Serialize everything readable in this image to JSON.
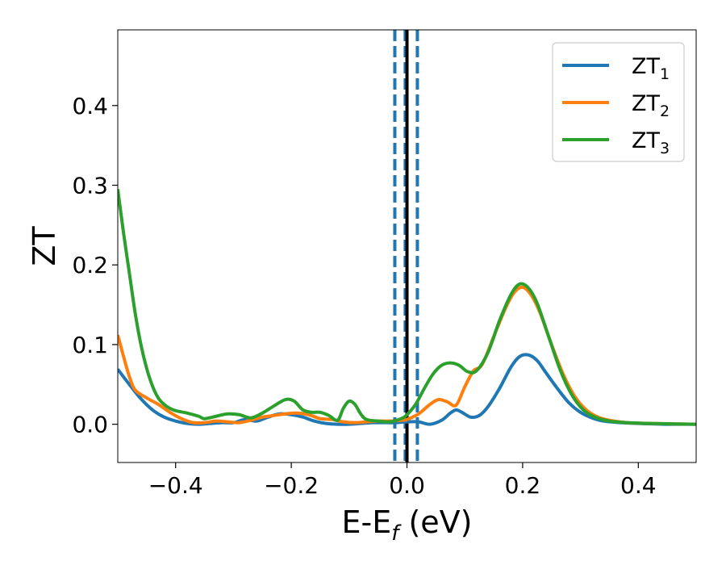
{
  "chart_data": {
    "type": "line",
    "xlabel": "E-E",
    "xlabel_sub": "f",
    "xlabel_unit": " (eV)",
    "ylabel": "ZT",
    "xlim": [
      -0.5,
      0.5
    ],
    "ylim": [
      -0.048,
      0.495
    ],
    "x_ticks": [
      -0.4,
      -0.2,
      0.0,
      0.2,
      0.4
    ],
    "x_tick_labels": [
      "−0.4",
      "−0.2",
      "0.0",
      "0.2",
      "0.4"
    ],
    "y_ticks": [
      0.0,
      0.1,
      0.2,
      0.3,
      0.4
    ],
    "y_tick_labels": [
      "0.0",
      "0.1",
      "0.2",
      "0.3",
      "0.4"
    ],
    "grid": false,
    "legend_position": "top-right",
    "vertical_lines": [
      {
        "x": -0.021,
        "style": "dashed",
        "color": "#1f77b4"
      },
      {
        "x": -0.003,
        "style": "dashed",
        "color": "#1f77b4"
      },
      {
        "x": 0.0,
        "style": "solid",
        "color": "#000000"
      },
      {
        "x": 0.018,
        "style": "dashed",
        "color": "#1f77b4"
      }
    ],
    "series": [
      {
        "name": "ZT",
        "sub": "1",
        "color": "#1f77b4",
        "points": [
          [
            -0.5,
            0.069
          ],
          [
            -0.48,
            0.05
          ],
          [
            -0.46,
            0.032
          ],
          [
            -0.44,
            0.018
          ],
          [
            -0.42,
            0.009
          ],
          [
            -0.4,
            0.004
          ],
          [
            -0.38,
            0.001
          ],
          [
            -0.36,
            0.0
          ],
          [
            -0.34,
            0.001
          ],
          [
            -0.32,
            0.002
          ],
          [
            -0.3,
            0.002
          ],
          [
            -0.28,
            0.006
          ],
          [
            -0.26,
            0.004
          ],
          [
            -0.24,
            0.009
          ],
          [
            -0.22,
            0.013
          ],
          [
            -0.2,
            0.012
          ],
          [
            -0.18,
            0.009
          ],
          [
            -0.16,
            0.004
          ],
          [
            -0.14,
            0.001
          ],
          [
            -0.12,
            0.0
          ],
          [
            -0.1,
            0.0
          ],
          [
            -0.08,
            0.001
          ],
          [
            -0.06,
            0.002
          ],
          [
            -0.04,
            0.002
          ],
          [
            -0.02,
            0.002
          ],
          [
            0.0,
            0.003
          ],
          [
            0.02,
            0.003
          ],
          [
            0.04,
            0.0
          ],
          [
            0.06,
            0.005
          ],
          [
            0.075,
            0.014
          ],
          [
            0.085,
            0.018
          ],
          [
            0.095,
            0.015
          ],
          [
            0.11,
            0.009
          ],
          [
            0.125,
            0.011
          ],
          [
            0.14,
            0.022
          ],
          [
            0.16,
            0.045
          ],
          [
            0.18,
            0.072
          ],
          [
            0.195,
            0.085
          ],
          [
            0.21,
            0.087
          ],
          [
            0.225,
            0.08
          ],
          [
            0.24,
            0.065
          ],
          [
            0.26,
            0.045
          ],
          [
            0.28,
            0.027
          ],
          [
            0.3,
            0.015
          ],
          [
            0.32,
            0.008
          ],
          [
            0.34,
            0.004
          ],
          [
            0.37,
            0.002
          ],
          [
            0.4,
            0.001
          ],
          [
            0.45,
            0.0
          ],
          [
            0.5,
            0.0
          ]
        ]
      },
      {
        "name": "ZT",
        "sub": "2",
        "color": "#ff7f0e",
        "points": [
          [
            -0.5,
            0.112
          ],
          [
            -0.49,
            0.085
          ],
          [
            -0.48,
            0.06
          ],
          [
            -0.47,
            0.043
          ],
          [
            -0.45,
            0.033
          ],
          [
            -0.43,
            0.025
          ],
          [
            -0.41,
            0.015
          ],
          [
            -0.39,
            0.007
          ],
          [
            -0.37,
            0.002
          ],
          [
            -0.35,
            0.002
          ],
          [
            -0.33,
            0.004
          ],
          [
            -0.31,
            0.003
          ],
          [
            -0.29,
            0.002
          ],
          [
            -0.27,
            0.005
          ],
          [
            -0.25,
            0.009
          ],
          [
            -0.23,
            0.011
          ],
          [
            -0.21,
            0.013
          ],
          [
            -0.19,
            0.014
          ],
          [
            -0.17,
            0.012
          ],
          [
            -0.15,
            0.007
          ],
          [
            -0.13,
            0.006
          ],
          [
            -0.11,
            0.003
          ],
          [
            -0.09,
            0.002
          ],
          [
            -0.07,
            0.003
          ],
          [
            -0.05,
            0.004
          ],
          [
            -0.03,
            0.004
          ],
          [
            -0.01,
            0.005
          ],
          [
            0.0,
            0.006
          ],
          [
            0.02,
            0.013
          ],
          [
            0.04,
            0.025
          ],
          [
            0.055,
            0.031
          ],
          [
            0.07,
            0.028
          ],
          [
            0.085,
            0.024
          ],
          [
            0.1,
            0.047
          ],
          [
            0.115,
            0.067
          ],
          [
            0.13,
            0.075
          ],
          [
            0.15,
            0.11
          ],
          [
            0.17,
            0.145
          ],
          [
            0.185,
            0.165
          ],
          [
            0.2,
            0.172
          ],
          [
            0.215,
            0.162
          ],
          [
            0.23,
            0.14
          ],
          [
            0.25,
            0.1
          ],
          [
            0.27,
            0.063
          ],
          [
            0.29,
            0.035
          ],
          [
            0.31,
            0.018
          ],
          [
            0.33,
            0.009
          ],
          [
            0.35,
            0.005
          ],
          [
            0.38,
            0.002
          ],
          [
            0.42,
            0.001
          ],
          [
            0.5,
            0.0
          ]
        ]
      },
      {
        "name": "ZT",
        "sub": "3",
        "color": "#2ca02c",
        "points": [
          [
            -0.5,
            0.295
          ],
          [
            -0.49,
            0.24
          ],
          [
            -0.48,
            0.19
          ],
          [
            -0.47,
            0.14
          ],
          [
            -0.46,
            0.1
          ],
          [
            -0.45,
            0.07
          ],
          [
            -0.44,
            0.048
          ],
          [
            -0.43,
            0.033
          ],
          [
            -0.42,
            0.025
          ],
          [
            -0.41,
            0.02
          ],
          [
            -0.4,
            0.017
          ],
          [
            -0.38,
            0.014
          ],
          [
            -0.36,
            0.01
          ],
          [
            -0.35,
            0.007
          ],
          [
            -0.33,
            0.01
          ],
          [
            -0.31,
            0.013
          ],
          [
            -0.29,
            0.012
          ],
          [
            -0.27,
            0.008
          ],
          [
            -0.25,
            0.014
          ],
          [
            -0.23,
            0.023
          ],
          [
            -0.21,
            0.031
          ],
          [
            -0.195,
            0.029
          ],
          [
            -0.18,
            0.018
          ],
          [
            -0.165,
            0.015
          ],
          [
            -0.15,
            0.015
          ],
          [
            -0.135,
            0.011
          ],
          [
            -0.12,
            0.005
          ],
          [
            -0.11,
            0.02
          ],
          [
            -0.1,
            0.029
          ],
          [
            -0.09,
            0.025
          ],
          [
            -0.08,
            0.013
          ],
          [
            -0.07,
            0.006
          ],
          [
            -0.05,
            0.004
          ],
          [
            -0.03,
            0.003
          ],
          [
            -0.01,
            0.007
          ],
          [
            0.0,
            0.012
          ],
          [
            0.015,
            0.025
          ],
          [
            0.03,
            0.045
          ],
          [
            0.045,
            0.063
          ],
          [
            0.06,
            0.074
          ],
          [
            0.075,
            0.077
          ],
          [
            0.09,
            0.074
          ],
          [
            0.105,
            0.066
          ],
          [
            0.12,
            0.067
          ],
          [
            0.14,
            0.09
          ],
          [
            0.16,
            0.13
          ],
          [
            0.18,
            0.163
          ],
          [
            0.195,
            0.176
          ],
          [
            0.21,
            0.171
          ],
          [
            0.225,
            0.152
          ],
          [
            0.245,
            0.11
          ],
          [
            0.265,
            0.068
          ],
          [
            0.285,
            0.037
          ],
          [
            0.305,
            0.018
          ],
          [
            0.325,
            0.009
          ],
          [
            0.35,
            0.004
          ],
          [
            0.38,
            0.002
          ],
          [
            0.42,
            0.001
          ],
          [
            0.5,
            0.0
          ]
        ]
      }
    ]
  }
}
